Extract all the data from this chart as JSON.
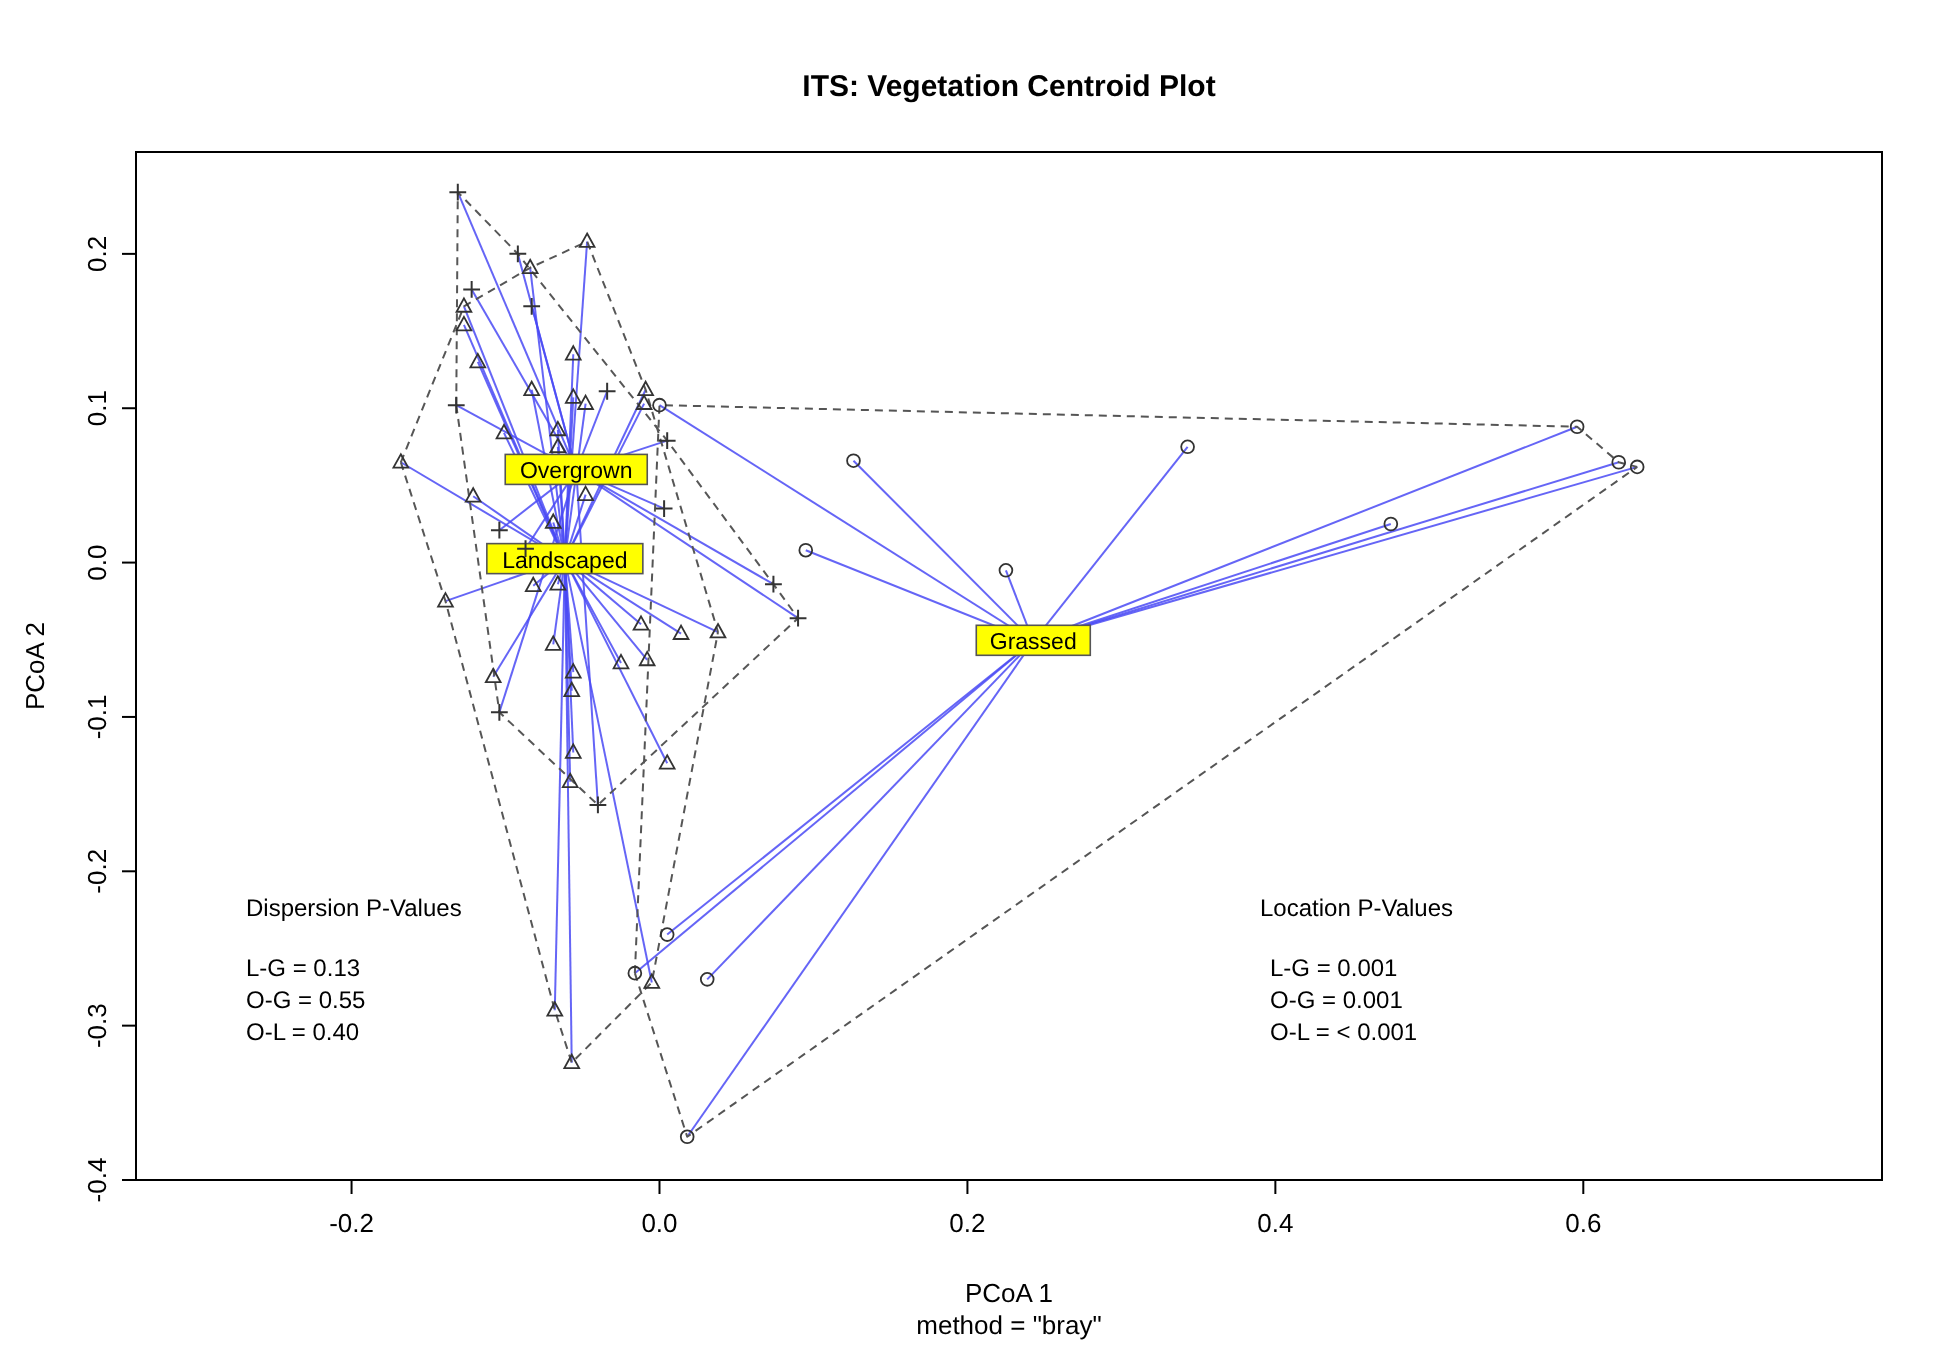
{
  "chart_data": {
    "type": "scatter",
    "title": "ITS: Vegetation Centroid Plot",
    "xlabel": "PCoA 1",
    "subtitle": "method = \"bray\"",
    "ylabel": "PCoA 2",
    "xlim": [
      -0.34,
      0.794
    ],
    "ylim": [
      -0.4,
      0.266
    ],
    "xticks": [
      -0.2,
      {
        "value": 0,
        "label": "0.0"
      },
      0.2,
      0.4,
      0.6
    ],
    "yticks": [
      -0.4,
      -0.3,
      -0.2,
      -0.1,
      {
        "value": 0,
        "label": "0.0"
      },
      0.1,
      0.2
    ],
    "grid": false,
    "series": [
      {
        "name": "Grassed",
        "marker": "circle",
        "color": "#333333",
        "x": [
          0.0,
          0.126,
          0.095,
          0.225,
          0.343,
          0.596,
          0.623,
          0.635,
          0.475,
          0.005,
          -0.016,
          0.031,
          0.018
        ],
        "values": [
          0.102,
          0.066,
          0.008,
          -0.005,
          0.075,
          0.088,
          0.065,
          0.062,
          0.025,
          -0.241,
          -0.266,
          -0.27,
          -0.372
        ]
      },
      {
        "name": "Landscaped",
        "marker": "triangle",
        "color": "#333333",
        "x": [
          -0.047,
          -0.084,
          -0.127,
          -0.127,
          -0.118,
          -0.056,
          -0.083,
          -0.056,
          -0.048,
          -0.009,
          -0.01,
          -0.101,
          -0.066,
          -0.066,
          -0.168,
          -0.121,
          -0.048,
          -0.069,
          -0.139,
          -0.082,
          -0.066,
          -0.012,
          0.014,
          0.038,
          -0.069,
          -0.025,
          -0.008,
          -0.108,
          -0.056,
          -0.057,
          -0.056,
          0.005,
          -0.058,
          -0.068,
          -0.057,
          -0.005
        ],
        "values": [
          0.208,
          0.191,
          0.166,
          0.154,
          0.13,
          0.135,
          0.112,
          0.107,
          0.103,
          0.112,
          0.103,
          0.084,
          0.086,
          0.075,
          0.065,
          0.043,
          0.044,
          0.026,
          -0.025,
          -0.015,
          -0.014,
          -0.04,
          -0.046,
          -0.045,
          -0.053,
          -0.065,
          -0.063,
          -0.074,
          -0.071,
          -0.083,
          -0.123,
          -0.13,
          -0.142,
          -0.29,
          -0.324,
          -0.272
        ]
      },
      {
        "name": "Overgrown",
        "marker": "cross",
        "color": "#333333",
        "x": [
          -0.131,
          -0.092,
          -0.122,
          -0.083,
          -0.132,
          -0.034,
          0.005,
          -0.104,
          -0.087,
          0.003,
          0.074,
          0.09,
          -0.104,
          -0.04
        ],
        "values": [
          0.24,
          0.2,
          0.177,
          0.166,
          0.102,
          0.111,
          0.079,
          0.021,
          0.009,
          0.035,
          -0.014,
          -0.036,
          -0.097,
          -0.157
        ]
      },
      {
        "type": "line",
        "marker": "none",
        "line_style": "dashed",
        "color": "#555555",
        "x": [
          -0.016,
          0.0,
          0.596,
          0.623,
          0.635
        ],
        "values": [
          -0.266,
          0.102,
          0.088,
          0.065,
          0.062
        ]
      },
      {
        "type": "line",
        "marker": "none",
        "line_style": "dashed",
        "color": "#555555",
        "x": [
          -0.016,
          0.018,
          0.635
        ],
        "values": [
          -0.266,
          -0.372,
          0.062
        ]
      },
      {
        "type": "line",
        "marker": "none",
        "line_style": "dashed",
        "color": "#565656",
        "x": [
          -0.168,
          -0.127,
          -0.084,
          -0.047,
          -0.009,
          0.038
        ],
        "values": [
          0.065,
          0.166,
          0.191,
          0.208,
          0.112,
          -0.045
        ]
      },
      {
        "type": "line",
        "marker": "none",
        "line_style": "dashed",
        "color": "#565656",
        "x": [
          -0.168,
          -0.139,
          -0.068,
          -0.057,
          -0.005,
          0.038
        ],
        "values": [
          0.065,
          -0.025,
          -0.29,
          -0.324,
          -0.272,
          -0.045
        ]
      },
      {
        "type": "line",
        "marker": "none",
        "line_style": "dashed",
        "color": "#575757",
        "x": [
          -0.132,
          -0.131,
          -0.092,
          0.005,
          0.074,
          0.09
        ],
        "values": [
          0.102,
          0.24,
          0.2,
          0.079,
          -0.014,
          -0.036
        ]
      },
      {
        "type": "line",
        "marker": "none",
        "line_style": "dashed",
        "color": "#575757",
        "x": [
          -0.132,
          -0.104,
          -0.04,
          0.09
        ],
        "values": [
          0.102,
          -0.097,
          -0.157,
          -0.036
        ]
      }
    ],
    "annotations": [
      "Dispersion P-Values",
      "L-G = 0.13",
      "O-G = 0.55",
      "O-L = 0.40",
      "Location P-Values",
      "L-G = 0.001",
      "O-G = 0.001",
      "O-L = < 0.001"
    ]
  }
}
